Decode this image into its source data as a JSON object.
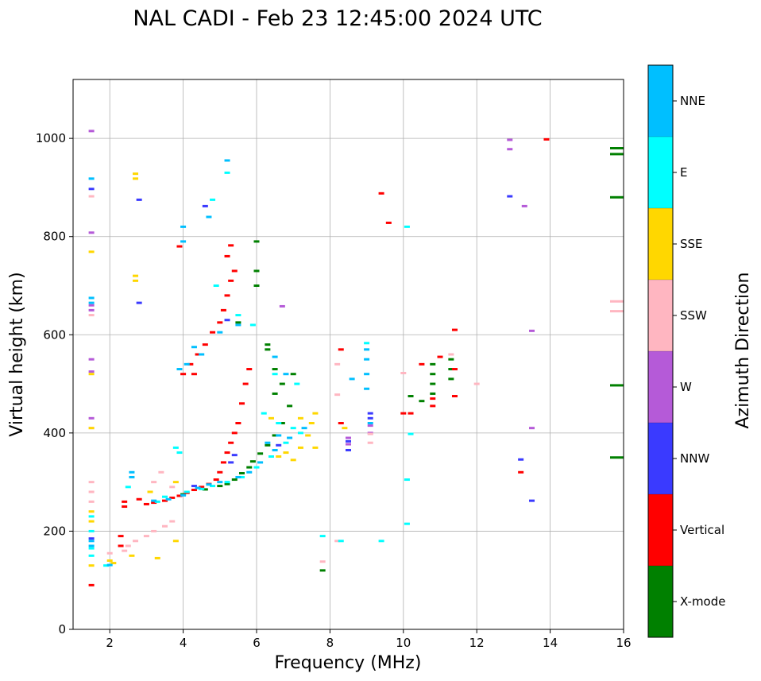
{
  "chart_data": {
    "type": "scatter",
    "title": "NAL CADI - Feb 23 12:45:00 2024 UTC",
    "xlabel": "Frequency (MHz)",
    "ylabel": "Virtual height (km)",
    "xlim": [
      1,
      16
    ],
    "ylim": [
      0,
      1120
    ],
    "xticks": [
      2,
      4,
      6,
      8,
      10,
      12,
      14,
      16
    ],
    "yticks": [
      0,
      200,
      400,
      600,
      800,
      1000
    ],
    "grid": true,
    "colorbar": {
      "label": "Azimuth Direction",
      "categories": [
        {
          "name": "X-mode",
          "color": "#008000"
        },
        {
          "name": "Vertical",
          "color": "#ff0000"
        },
        {
          "name": "NNW",
          "color": "#3a3aff"
        },
        {
          "name": "W",
          "color": "#b55ad8"
        },
        {
          "name": "SSW",
          "color": "#ffb6c1"
        },
        {
          "name": "SSE",
          "color": "#ffd700"
        },
        {
          "name": "E",
          "color": "#00ffff"
        },
        {
          "name": "NNE",
          "color": "#00bfff"
        }
      ]
    },
    "series": [
      {
        "name": "X-mode",
        "points": [
          [
            4.0,
            275
          ],
          [
            4.6,
            285
          ],
          [
            5.0,
            292
          ],
          [
            5.2,
            296
          ],
          [
            5.4,
            305
          ],
          [
            5.6,
            318
          ],
          [
            5.8,
            330
          ],
          [
            5.9,
            342
          ],
          [
            6.1,
            358
          ],
          [
            6.3,
            375
          ],
          [
            6.5,
            395
          ],
          [
            6.7,
            420
          ],
          [
            6.9,
            455
          ],
          [
            6.3,
            580
          ],
          [
            6.3,
            570
          ],
          [
            6.5,
            480
          ],
          [
            6.7,
            500
          ],
          [
            7.0,
            520
          ],
          [
            6.0,
            700
          ],
          [
            6.0,
            730
          ],
          [
            6.0,
            790
          ],
          [
            5.5,
            625
          ],
          [
            6.5,
            530
          ],
          [
            10.8,
            500
          ],
          [
            10.8,
            520
          ],
          [
            10.8,
            540
          ],
          [
            10.8,
            480
          ],
          [
            11.3,
            530
          ],
          [
            11.3,
            510
          ],
          [
            11.3,
            550
          ],
          [
            10.5,
            465
          ],
          [
            10.2,
            475
          ],
          [
            7.8,
            120
          ],
          [
            15.8,
            350
          ],
          [
            15.8,
            497
          ],
          [
            15.8,
            880
          ],
          [
            15.8,
            968
          ],
          [
            15.8,
            980
          ]
        ]
      },
      {
        "name": "Vertical",
        "points": [
          [
            1.5,
            90
          ],
          [
            2.3,
            190
          ],
          [
            2.3,
            170
          ],
          [
            2.4,
            250
          ],
          [
            2.4,
            260
          ],
          [
            2.8,
            265
          ],
          [
            3.0,
            255
          ],
          [
            3.2,
            258
          ],
          [
            3.5,
            262
          ],
          [
            3.7,
            268
          ],
          [
            3.9,
            272
          ],
          [
            4.1,
            278
          ],
          [
            4.3,
            284
          ],
          [
            4.5,
            290
          ],
          [
            4.7,
            296
          ],
          [
            4.9,
            305
          ],
          [
            5.0,
            320
          ],
          [
            5.1,
            340
          ],
          [
            5.2,
            360
          ],
          [
            5.3,
            380
          ],
          [
            5.4,
            400
          ],
          [
            5.5,
            420
          ],
          [
            5.6,
            460
          ],
          [
            5.7,
            500
          ],
          [
            5.8,
            530
          ],
          [
            4.0,
            520
          ],
          [
            4.2,
            540
          ],
          [
            4.4,
            560
          ],
          [
            4.6,
            580
          ],
          [
            4.8,
            605
          ],
          [
            5.0,
            625
          ],
          [
            5.1,
            650
          ],
          [
            5.2,
            680
          ],
          [
            5.3,
            710
          ],
          [
            5.4,
            730
          ],
          [
            3.9,
            780
          ],
          [
            5.3,
            782
          ],
          [
            5.2,
            760
          ],
          [
            4.3,
            520
          ],
          [
            8.3,
            420
          ],
          [
            8.3,
            570
          ],
          [
            9.4,
            888
          ],
          [
            9.6,
            828
          ],
          [
            10.0,
            440
          ],
          [
            10.2,
            440
          ],
          [
            10.8,
            455
          ],
          [
            10.8,
            470
          ],
          [
            11.0,
            555
          ],
          [
            11.4,
            475
          ],
          [
            11.4,
            610
          ],
          [
            11.4,
            530
          ],
          [
            13.2,
            320
          ],
          [
            13.9,
            998
          ],
          [
            10.5,
            540
          ]
        ]
      },
      {
        "name": "NNW",
        "points": [
          [
            1.5,
            185
          ],
          [
            1.5,
            897
          ],
          [
            2.8,
            875
          ],
          [
            2.8,
            665
          ],
          [
            4.6,
            862
          ],
          [
            5.3,
            340
          ],
          [
            5.4,
            355
          ],
          [
            5.2,
            630
          ],
          [
            6.6,
            375
          ],
          [
            8.5,
            365
          ],
          [
            8.5,
            383
          ],
          [
            9.1,
            430
          ],
          [
            9.1,
            440
          ],
          [
            12.9,
            882
          ],
          [
            13.2,
            346
          ],
          [
            13.5,
            262
          ],
          [
            4.3,
            292
          ]
        ]
      },
      {
        "name": "W",
        "points": [
          [
            1.5,
            1015
          ],
          [
            1.5,
            808
          ],
          [
            1.5,
            550
          ],
          [
            1.5,
            525
          ],
          [
            1.5,
            430
          ],
          [
            1.5,
            660
          ],
          [
            1.5,
            650
          ],
          [
            8.5,
            377
          ],
          [
            8.5,
            390
          ],
          [
            9.1,
            415
          ],
          [
            9.1,
            400
          ],
          [
            12.9,
            978
          ],
          [
            12.9,
            997
          ],
          [
            13.3,
            862
          ],
          [
            13.5,
            608
          ],
          [
            13.5,
            410
          ],
          [
            6.7,
            658
          ]
        ]
      },
      {
        "name": "SSW",
        "points": [
          [
            1.5,
            300
          ],
          [
            1.5,
            280
          ],
          [
            1.5,
            260
          ],
          [
            1.5,
            882
          ],
          [
            1.5,
            640
          ],
          [
            1.5,
            410
          ],
          [
            2.4,
            160
          ],
          [
            2.5,
            170
          ],
          [
            2.7,
            180
          ],
          [
            3.0,
            190
          ],
          [
            3.2,
            200
          ],
          [
            3.5,
            210
          ],
          [
            3.7,
            220
          ],
          [
            3.2,
            300
          ],
          [
            3.4,
            320
          ],
          [
            3.7,
            290
          ],
          [
            8.2,
            478
          ],
          [
            8.2,
            180
          ],
          [
            8.2,
            540
          ],
          [
            9.1,
            380
          ],
          [
            9.1,
            398
          ],
          [
            10.0,
            522
          ],
          [
            11.3,
            560
          ],
          [
            12.0,
            500
          ],
          [
            15.8,
            648
          ],
          [
            15.8,
            668
          ],
          [
            7.8,
            138
          ],
          [
            2.0,
            155
          ]
        ]
      },
      {
        "name": "SSE",
        "points": [
          [
            1.5,
            130
          ],
          [
            1.5,
            220
          ],
          [
            1.5,
            240
          ],
          [
            1.5,
            769
          ],
          [
            1.5,
            520
          ],
          [
            1.5,
            410
          ],
          [
            2.0,
            140
          ],
          [
            2.1,
            135
          ],
          [
            2.6,
            150
          ],
          [
            2.7,
            710
          ],
          [
            2.7,
            720
          ],
          [
            2.7,
            918
          ],
          [
            2.7,
            928
          ],
          [
            3.1,
            280
          ],
          [
            3.3,
            145
          ],
          [
            3.8,
            180
          ],
          [
            3.8,
            300
          ],
          [
            6.6,
            352
          ],
          [
            6.8,
            360
          ],
          [
            7.0,
            345
          ],
          [
            7.2,
            370
          ],
          [
            7.4,
            395
          ],
          [
            7.6,
            370
          ],
          [
            7.6,
            440
          ],
          [
            7.5,
            420
          ],
          [
            8.4,
            410
          ],
          [
            7.2,
            430
          ],
          [
            6.4,
            430
          ]
        ]
      },
      {
        "name": "E",
        "points": [
          [
            1.5,
            150
          ],
          [
            1.5,
            165
          ],
          [
            1.5,
            200
          ],
          [
            1.5,
            230
          ],
          [
            1.9,
            130
          ],
          [
            2.5,
            290
          ],
          [
            3.3,
            260
          ],
          [
            3.5,
            270
          ],
          [
            4.1,
            280
          ],
          [
            4.5,
            286
          ],
          [
            4.8,
            292
          ],
          [
            5.2,
            300
          ],
          [
            5.6,
            310
          ],
          [
            6.0,
            330
          ],
          [
            6.4,
            352
          ],
          [
            6.8,
            380
          ],
          [
            7.2,
            400
          ],
          [
            7.0,
            410
          ],
          [
            6.6,
            420
          ],
          [
            6.2,
            440
          ],
          [
            6.5,
            520
          ],
          [
            7.1,
            500
          ],
          [
            3.8,
            370
          ],
          [
            3.9,
            360
          ],
          [
            4.9,
            700
          ],
          [
            4.8,
            875
          ],
          [
            5.2,
            930
          ],
          [
            5.5,
            640
          ],
          [
            5.9,
            620
          ],
          [
            10.1,
            820
          ],
          [
            10.1,
            305
          ],
          [
            10.1,
            215
          ],
          [
            9.4,
            180
          ],
          [
            7.8,
            190
          ],
          [
            9.0,
            583
          ],
          [
            8.3,
            180
          ],
          [
            10.2,
            398
          ]
        ]
      },
      {
        "name": "NNE",
        "points": [
          [
            1.5,
            170
          ],
          [
            1.5,
            180
          ],
          [
            1.5,
            675
          ],
          [
            1.5,
            665
          ],
          [
            1.5,
            918
          ],
          [
            2.0,
            131
          ],
          [
            2.6,
            310
          ],
          [
            2.6,
            320
          ],
          [
            3.2,
            262
          ],
          [
            3.6,
            265
          ],
          [
            4.0,
            273
          ],
          [
            4.4,
            288
          ],
          [
            4.7,
            295
          ],
          [
            5.0,
            300
          ],
          [
            5.5,
            310
          ],
          [
            5.8,
            320
          ],
          [
            6.1,
            340
          ],
          [
            6.5,
            365
          ],
          [
            6.9,
            390
          ],
          [
            7.3,
            410
          ],
          [
            6.3,
            380
          ],
          [
            6.6,
            395
          ],
          [
            4.7,
            840
          ],
          [
            4.0,
            820
          ],
          [
            4.0,
            790
          ],
          [
            3.9,
            530
          ],
          [
            4.5,
            560
          ],
          [
            5.0,
            605
          ],
          [
            5.5,
            620
          ],
          [
            5.2,
            955
          ],
          [
            6.5,
            555
          ],
          [
            6.8,
            520
          ],
          [
            9.0,
            570
          ],
          [
            9.0,
            550
          ],
          [
            9.0,
            520
          ],
          [
            9.0,
            490
          ],
          [
            8.6,
            510
          ],
          [
            9.1,
            420
          ],
          [
            4.1,
            540
          ],
          [
            4.3,
            575
          ]
        ]
      }
    ]
  }
}
